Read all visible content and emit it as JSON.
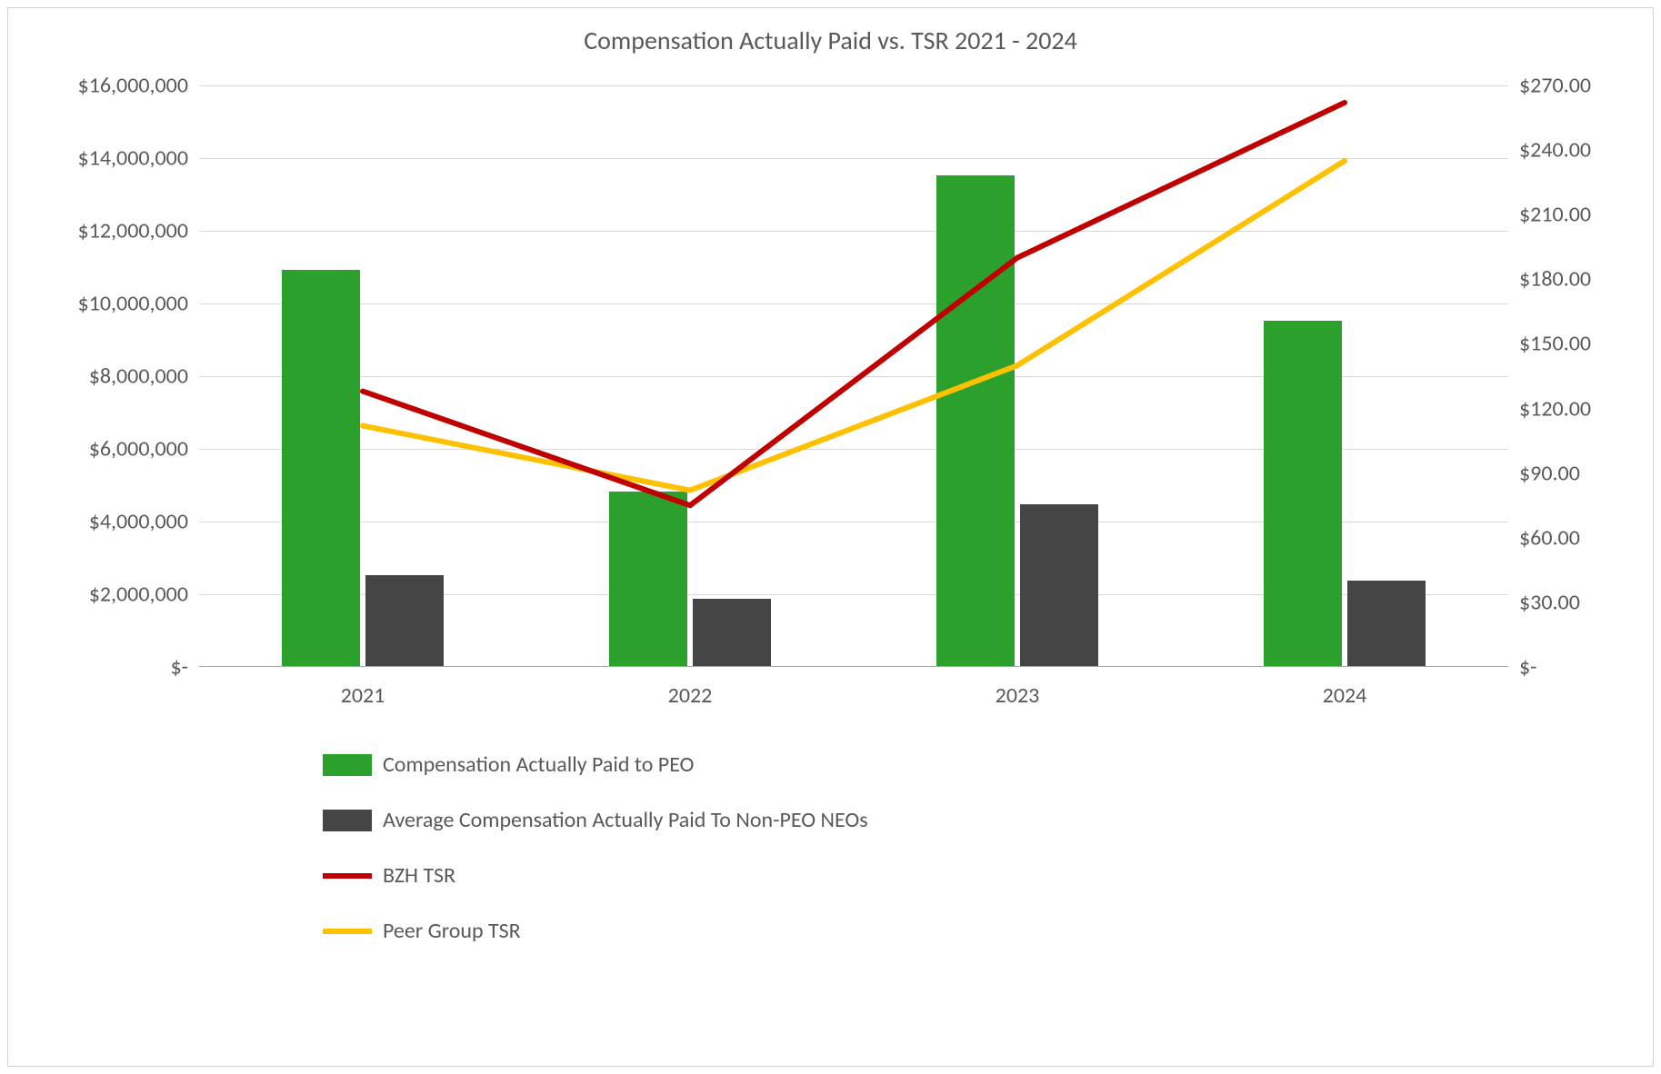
{
  "chart": {
    "title": "Compensation Actually Paid vs. TSR 2021 - 2024",
    "title_fontsize": 28,
    "title_color": "#595959",
    "background_color": "#ffffff",
    "border_color": "#d0d0d0",
    "grid_color": "#d9d9d9",
    "axis_text_color": "#595959",
    "axis_fontsize": 24,
    "categories": [
      "2021",
      "2022",
      "2023",
      "2024"
    ],
    "left_axis": {
      "min": 0,
      "max": 16000000,
      "step": 2000000,
      "labels": [
        "$-",
        "$2,000,000",
        "$4,000,000",
        "$6,000,000",
        "$8,000,000",
        "$10,000,000",
        "$12,000,000",
        "$14,000,000",
        "$16,000,000"
      ]
    },
    "right_axis": {
      "min": 0,
      "max": 270,
      "step": 30,
      "labels": [
        "$-",
        "$30.00",
        "$60.00",
        "$90.00",
        "$120.00",
        "$150.00",
        "$180.00",
        "$210.00",
        "$240.00",
        "$270.00"
      ]
    },
    "bars": {
      "peo": {
        "label": "Compensation Actually Paid to PEO",
        "color": "#2ca02c",
        "values": [
          10900000,
          4800000,
          13500000,
          9500000
        ]
      },
      "neo": {
        "label": "Average Compensation Actually Paid To Non-PEO NEOs",
        "color": "#454545",
        "values": [
          2500000,
          1850000,
          4450000,
          2350000
        ]
      },
      "bar_width_frac": 0.24,
      "gap_frac": 0.015
    },
    "lines": {
      "bzh": {
        "label": "BZH TSR",
        "color": "#c00000",
        "width": 6,
        "values": [
          128,
          75,
          190,
          262
        ]
      },
      "peer": {
        "label": "Peer Group TSR",
        "color": "#ffc000",
        "width": 6,
        "values": [
          112,
          82,
          140,
          235
        ]
      }
    },
    "legend": {
      "items": [
        {
          "kind": "bar",
          "ref": "peo"
        },
        {
          "kind": "bar",
          "ref": "neo"
        },
        {
          "kind": "line",
          "ref": "bzh"
        },
        {
          "kind": "line",
          "ref": "peer"
        }
      ]
    }
  }
}
